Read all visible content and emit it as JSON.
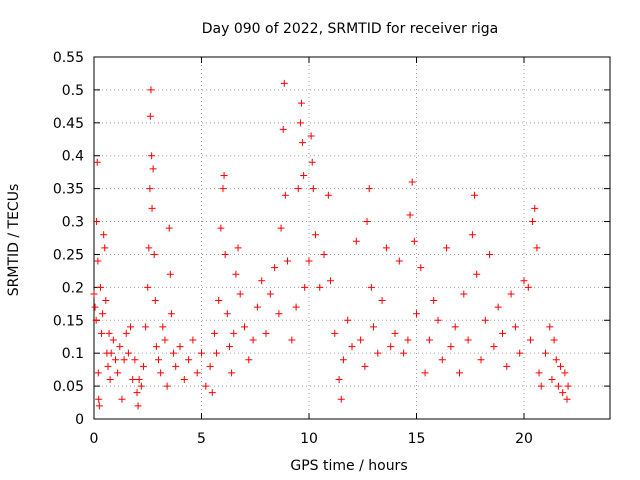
{
  "chart_data": {
    "type": "scatter",
    "title": "Day 090 of 2022, SRMTID for receiver riga",
    "xlabel": "GPS time / hours",
    "ylabel": "SRMTID / TECUs",
    "xlim": [
      0,
      24
    ],
    "ylim": [
      0,
      0.55
    ],
    "xticks": [
      "0",
      "5",
      "10",
      "15",
      "20"
    ],
    "yticks": [
      "0",
      "0.05",
      "0.1",
      "0.15",
      "0.2",
      "0.25",
      "0.3",
      "0.35",
      "0.4",
      "0.45",
      "0.5",
      "0.55"
    ],
    "grid": true,
    "marker": "+",
    "color": "#ff0000",
    "series": [
      {
        "points": [
          [
            0.0,
            0.19
          ],
          [
            0.05,
            0.17
          ],
          [
            0.1,
            0.15
          ],
          [
            0.12,
            0.3
          ],
          [
            0.15,
            0.39
          ],
          [
            0.18,
            0.24
          ],
          [
            0.2,
            0.07
          ],
          [
            0.22,
            0.03
          ],
          [
            0.25,
            0.02
          ],
          [
            0.3,
            0.2
          ],
          [
            0.35,
            0.13
          ],
          [
            0.4,
            0.16
          ],
          [
            0.45,
            0.28
          ],
          [
            0.5,
            0.26
          ],
          [
            0.55,
            0.18
          ],
          [
            0.6,
            0.1
          ],
          [
            0.65,
            0.08
          ],
          [
            0.7,
            0.13
          ],
          [
            0.75,
            0.06
          ],
          [
            0.8,
            0.1
          ],
          [
            0.9,
            0.12
          ],
          [
            1.0,
            0.09
          ],
          [
            1.1,
            0.07
          ],
          [
            1.2,
            0.11
          ],
          [
            1.3,
            0.03
          ],
          [
            1.4,
            0.09
          ],
          [
            1.5,
            0.13
          ],
          [
            1.6,
            0.1
          ],
          [
            1.7,
            0.14
          ],
          [
            1.8,
            0.06
          ],
          [
            1.9,
            0.09
          ],
          [
            2.0,
            0.04
          ],
          [
            2.05,
            0.02
          ],
          [
            2.1,
            0.06
          ],
          [
            2.2,
            0.05
          ],
          [
            2.3,
            0.08
          ],
          [
            2.4,
            0.14
          ],
          [
            2.5,
            0.2
          ],
          [
            2.55,
            0.26
          ],
          [
            2.6,
            0.35
          ],
          [
            2.62,
            0.46
          ],
          [
            2.65,
            0.5
          ],
          [
            2.68,
            0.4
          ],
          [
            2.7,
            0.32
          ],
          [
            2.75,
            0.38
          ],
          [
            2.8,
            0.25
          ],
          [
            2.85,
            0.18
          ],
          [
            2.9,
            0.11
          ],
          [
            3.0,
            0.09
          ],
          [
            3.1,
            0.07
          ],
          [
            3.2,
            0.14
          ],
          [
            3.3,
            0.12
          ],
          [
            3.4,
            0.05
          ],
          [
            3.5,
            0.29
          ],
          [
            3.55,
            0.22
          ],
          [
            3.6,
            0.16
          ],
          [
            3.7,
            0.1
          ],
          [
            3.8,
            0.08
          ],
          [
            4.0,
            0.11
          ],
          [
            4.2,
            0.06
          ],
          [
            4.4,
            0.09
          ],
          [
            4.6,
            0.12
          ],
          [
            4.8,
            0.07
          ],
          [
            5.0,
            0.1
          ],
          [
            5.2,
            0.05
          ],
          [
            5.4,
            0.08
          ],
          [
            5.5,
            0.04
          ],
          [
            5.6,
            0.13
          ],
          [
            5.7,
            0.1
          ],
          [
            5.8,
            0.18
          ],
          [
            5.9,
            0.29
          ],
          [
            6.0,
            0.35
          ],
          [
            6.05,
            0.37
          ],
          [
            6.1,
            0.25
          ],
          [
            6.2,
            0.16
          ],
          [
            6.3,
            0.11
          ],
          [
            6.4,
            0.07
          ],
          [
            6.5,
            0.13
          ],
          [
            6.6,
            0.22
          ],
          [
            6.7,
            0.26
          ],
          [
            6.8,
            0.19
          ],
          [
            7.0,
            0.14
          ],
          [
            7.2,
            0.09
          ],
          [
            7.4,
            0.12
          ],
          [
            7.6,
            0.17
          ],
          [
            7.8,
            0.21
          ],
          [
            8.0,
            0.13
          ],
          [
            8.2,
            0.19
          ],
          [
            8.4,
            0.23
          ],
          [
            8.6,
            0.16
          ],
          [
            8.7,
            0.29
          ],
          [
            8.8,
            0.44
          ],
          [
            8.85,
            0.51
          ],
          [
            8.9,
            0.34
          ],
          [
            9.0,
            0.24
          ],
          [
            9.2,
            0.12
          ],
          [
            9.4,
            0.17
          ],
          [
            9.5,
            0.35
          ],
          [
            9.6,
            0.45
          ],
          [
            9.65,
            0.48
          ],
          [
            9.7,
            0.42
          ],
          [
            9.75,
            0.37
          ],
          [
            9.8,
            0.2
          ],
          [
            10.0,
            0.24
          ],
          [
            10.1,
            0.43
          ],
          [
            10.15,
            0.39
          ],
          [
            10.2,
            0.35
          ],
          [
            10.3,
            0.28
          ],
          [
            10.5,
            0.2
          ],
          [
            10.7,
            0.25
          ],
          [
            10.9,
            0.34
          ],
          [
            11.0,
            0.21
          ],
          [
            11.2,
            0.13
          ],
          [
            11.4,
            0.06
          ],
          [
            11.5,
            0.03
          ],
          [
            11.6,
            0.09
          ],
          [
            11.8,
            0.15
          ],
          [
            12.0,
            0.11
          ],
          [
            12.2,
            0.27
          ],
          [
            12.4,
            0.12
          ],
          [
            12.6,
            0.08
          ],
          [
            12.7,
            0.3
          ],
          [
            12.8,
            0.35
          ],
          [
            12.9,
            0.2
          ],
          [
            13.0,
            0.14
          ],
          [
            13.2,
            0.1
          ],
          [
            13.4,
            0.18
          ],
          [
            13.6,
            0.26
          ],
          [
            13.8,
            0.11
          ],
          [
            14.0,
            0.13
          ],
          [
            14.2,
            0.24
          ],
          [
            14.4,
            0.1
          ],
          [
            14.6,
            0.12
          ],
          [
            14.7,
            0.31
          ],
          [
            14.8,
            0.36
          ],
          [
            14.9,
            0.27
          ],
          [
            15.0,
            0.16
          ],
          [
            15.2,
            0.23
          ],
          [
            15.4,
            0.07
          ],
          [
            15.6,
            0.12
          ],
          [
            15.8,
            0.18
          ],
          [
            16.0,
            0.15
          ],
          [
            16.2,
            0.09
          ],
          [
            16.4,
            0.26
          ],
          [
            16.6,
            0.11
          ],
          [
            16.8,
            0.14
          ],
          [
            17.0,
            0.07
          ],
          [
            17.2,
            0.19
          ],
          [
            17.4,
            0.12
          ],
          [
            17.6,
            0.28
          ],
          [
            17.7,
            0.34
          ],
          [
            17.8,
            0.22
          ],
          [
            18.0,
            0.09
          ],
          [
            18.2,
            0.15
          ],
          [
            18.4,
            0.25
          ],
          [
            18.6,
            0.11
          ],
          [
            18.8,
            0.17
          ],
          [
            19.0,
            0.13
          ],
          [
            19.2,
            0.08
          ],
          [
            19.4,
            0.19
          ],
          [
            19.6,
            0.14
          ],
          [
            19.8,
            0.1
          ],
          [
            20.0,
            0.21
          ],
          [
            20.2,
            0.2
          ],
          [
            20.3,
            0.12
          ],
          [
            20.4,
            0.3
          ],
          [
            20.5,
            0.32
          ],
          [
            20.6,
            0.26
          ],
          [
            20.7,
            0.07
          ],
          [
            20.8,
            0.05
          ],
          [
            21.0,
            0.1
          ],
          [
            21.2,
            0.14
          ],
          [
            21.3,
            0.06
          ],
          [
            21.4,
            0.12
          ],
          [
            21.5,
            0.09
          ],
          [
            21.6,
            0.05
          ],
          [
            21.7,
            0.08
          ],
          [
            21.8,
            0.04
          ],
          [
            21.9,
            0.07
          ],
          [
            22.0,
            0.03
          ],
          [
            22.05,
            0.05
          ]
        ]
      }
    ]
  }
}
